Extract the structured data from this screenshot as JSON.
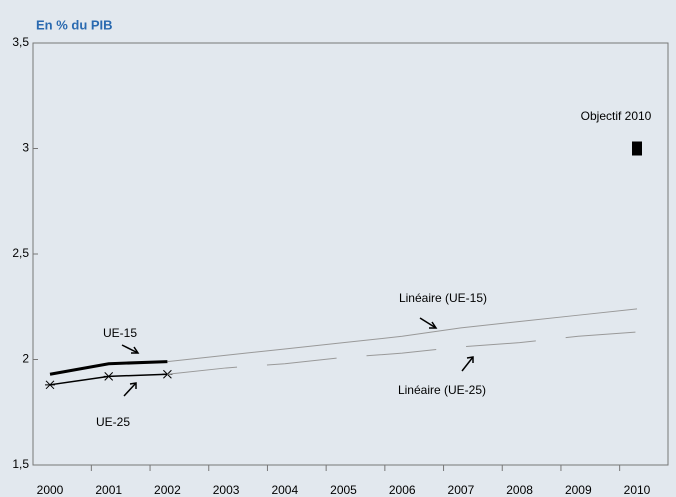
{
  "chart_data": {
    "type": "line",
    "title": "En % du PIB",
    "categories": [
      "2000",
      "2001",
      "2002",
      "2003",
      "2004",
      "2005",
      "2006",
      "2007",
      "2008",
      "2009",
      "2010"
    ],
    "series": [
      {
        "name": "UE-15",
        "color": "#000000",
        "width": 3,
        "values": [
          1.93,
          1.98,
          1.99,
          null,
          null,
          null,
          null,
          null,
          null,
          null,
          null
        ]
      },
      {
        "name": "UE-25",
        "color": "#000000",
        "width": 1.5,
        "marker": "star",
        "values": [
          1.88,
          1.92,
          1.93,
          null,
          null,
          null,
          null,
          null,
          null,
          null,
          null
        ]
      },
      {
        "name": "Linéaire (UE-15)",
        "color": "#999999",
        "width": 1,
        "values": [
          null,
          null,
          1.99,
          2.02,
          2.05,
          2.08,
          2.11,
          2.15,
          2.18,
          2.21,
          2.24
        ]
      },
      {
        "name": "Linéaire (UE-25)",
        "color": "#999999",
        "width": 1,
        "dash": true,
        "values": [
          null,
          null,
          1.93,
          1.96,
          1.98,
          2.01,
          2.03,
          2.06,
          2.08,
          2.11,
          2.13
        ]
      },
      {
        "name": "Objectif 2010",
        "color": "#000000",
        "marker": "square",
        "values": [
          null,
          null,
          null,
          null,
          null,
          null,
          null,
          null,
          null,
          null,
          3
        ]
      }
    ],
    "ylim": [
      1.5,
      3.5
    ],
    "yticks": [
      {
        "value": 1.5,
        "label": "1,5"
      },
      2,
      {
        "value": 2.5,
        "label": "2,5"
      },
      3,
      {
        "value": 3.5,
        "label": "3,5"
      }
    ],
    "grid": false
  }
}
